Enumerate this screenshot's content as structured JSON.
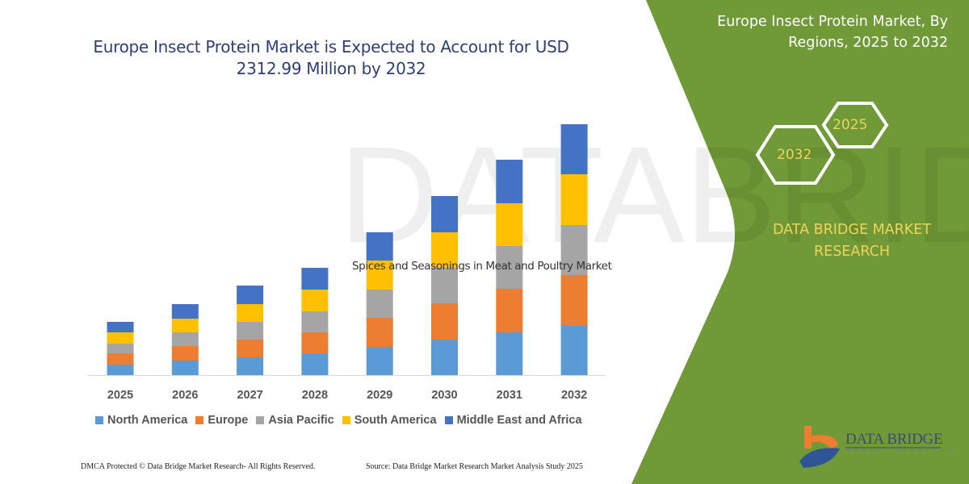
{
  "header": {
    "title": "Europe Insect Protein Market is Expected to Account for USD 2312.99 Million by 2032",
    "side_title": "Europe Insect Protein Market, By Regions, 2025 to 2032"
  },
  "side_panel": {
    "hex_start": "2025",
    "hex_end": "2032",
    "brand": "DATA BRIDGE MARKET RESEARCH",
    "logo_text": "DATA BRIDGE",
    "logo_subtext": "MARKET RESEARCH",
    "background_color": "#6f9a37",
    "text_accent_color": "#f2d35a"
  },
  "overlay_text": "Spices and Seasonings in Meat and Poultry Market",
  "footer": {
    "left": "DMCA Protected © Data Bridge Market Research-  All Rights Reserved.",
    "right": "Source: Data Bridge Market Research  Market Analysis Study 2025"
  },
  "chart_data": {
    "type": "bar",
    "stacked": true,
    "title": "Europe Insect Protein Market is Expected to Account for USD 2312.99 Million by 2032",
    "xlabel": "",
    "ylabel": "",
    "y_axis_shown": false,
    "grid": false,
    "legend_position": "bottom",
    "categories": [
      "2025",
      "2026",
      "2027",
      "2028",
      "2029",
      "2030",
      "2031",
      "2032"
    ],
    "series": [
      {
        "name": "North America",
        "color": "#5b9bd5",
        "values": [
          13,
          18,
          22,
          27,
          35,
          44,
          53,
          61
        ]
      },
      {
        "name": "Europe",
        "color": "#ed7d31",
        "values": [
          14,
          18,
          22,
          26,
          36,
          45,
          54,
          63
        ]
      },
      {
        "name": "Asia Pacific",
        "color": "#a5a5a5",
        "values": [
          12,
          17,
          22,
          26,
          35,
          44,
          53,
          62
        ]
      },
      {
        "name": "South America",
        "color": "#ffc000",
        "values": [
          14,
          17,
          22,
          27,
          36,
          44,
          53,
          63
        ]
      },
      {
        "name": "Middle East and Africa",
        "color": "#4472c4",
        "values": [
          13,
          18,
          23,
          27,
          35,
          45,
          54,
          62
        ]
      }
    ]
  }
}
